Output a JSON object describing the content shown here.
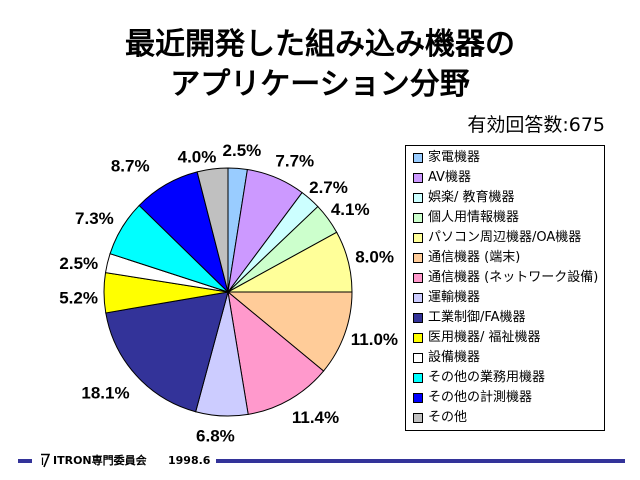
{
  "chart_data": {
    "type": "pie",
    "title": "最近開発した組み込み機器の\nアプリケーション分野",
    "subtitle": "有効回答数:675",
    "categories": [
      "家電機器",
      "AV機器",
      "娯楽/ 教育機器",
      "個人用情報機器",
      "パソコン周辺機器/OA機器",
      "通信機器 (端末)",
      "通信機器 (ネットワーク設備)",
      "運輸機器",
      "工業制御/FA機器",
      "医用機器/ 福祉機器",
      "設備機器",
      "その他の業務用機器",
      "その他の計測機器",
      "その他"
    ],
    "values": [
      2.5,
      7.7,
      2.7,
      4.1,
      8.0,
      11.0,
      11.4,
      6.8,
      18.1,
      5.2,
      2.5,
      7.3,
      8.7,
      4.0
    ],
    "data_labels": [
      "2.5%",
      "7.7%",
      "2.7%",
      "4.1%",
      "8.0%",
      "11.0%",
      "11.4%",
      "6.8%",
      "18.1%",
      "5.2%",
      "2.5%",
      "7.3%",
      "8.7%",
      "4.0%"
    ],
    "colors": [
      "#99CCFF",
      "#CC99FF",
      "#CCFFFF",
      "#CCFFCC",
      "#FFFF99",
      "#FFCC99",
      "#FF99CC",
      "#CCCCFF",
      "#333399",
      "#FFFF00",
      "#FFFFFF",
      "#00FFFF",
      "#0000FF",
      "#C0C0C0"
    ],
    "legend_position": "right"
  },
  "footer": {
    "organization": "ITRON専門委員会",
    "date": "1998.6",
    "logo_icon": "itron-logo-icon",
    "rule_color": "#333399"
  }
}
